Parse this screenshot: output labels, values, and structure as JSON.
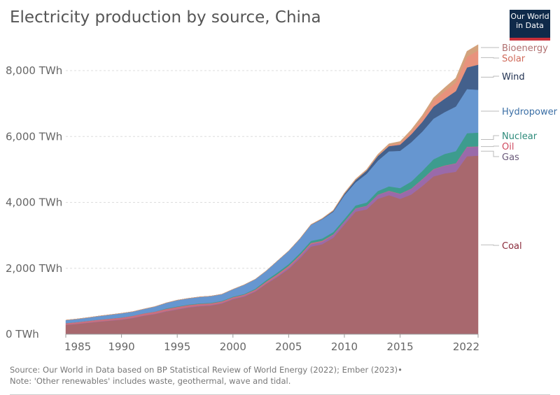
{
  "title": "Electricity production by source, China",
  "logo": "Our World in Data",
  "source": "Source: Our World in Data based on BP Statistical Review of World Energy (2022); Ember (2023)•",
  "note": "Note: 'Other renewables' includes waste, geothermal, wave and tidal.",
  "chart_data": {
    "type": "area",
    "stacked": true,
    "title": "Electricity production by source, China",
    "ylim": [
      0,
      8800
    ],
    "xlim": [
      1985,
      2022
    ],
    "yticks": [
      {
        "v": 0,
        "label": "0 TWh"
      },
      {
        "v": 2000,
        "label": "2,000 TWh"
      },
      {
        "v": 4000,
        "label": "4,000 TWh"
      },
      {
        "v": 6000,
        "label": "6,000 TWh"
      },
      {
        "v": 8000,
        "label": "8,000 TWh"
      }
    ],
    "xticks": [
      {
        "v": 1985,
        "label": "1985"
      },
      {
        "v": 1990,
        "label": "1990"
      },
      {
        "v": 1995,
        "label": "1995"
      },
      {
        "v": 2000,
        "label": "2000"
      },
      {
        "v": 2005,
        "label": "2005"
      },
      {
        "v": 2010,
        "label": "2010"
      },
      {
        "v": 2015,
        "label": "2015"
      },
      {
        "v": 2022,
        "label": "2022"
      }
    ],
    "grid": "horizontal dashed",
    "legend": "right, end labels",
    "x": [
      1985,
      1986,
      1987,
      1988,
      1989,
      1990,
      1991,
      1992,
      1993,
      1994,
      1995,
      1996,
      1997,
      1998,
      1999,
      2000,
      2001,
      2002,
      2003,
      2004,
      2005,
      2006,
      2007,
      2008,
      2009,
      2010,
      2011,
      2012,
      2013,
      2014,
      2015,
      2016,
      2017,
      2018,
      2019,
      2020,
      2021,
      2022
    ],
    "series": [
      {
        "name": "Coal",
        "color": "#a8686e",
        "label_color": "#8a2a3a",
        "values": [
          280,
          310,
          345,
          380,
          410,
          440,
          490,
          560,
          610,
          690,
          750,
          810,
          850,
          870,
          930,
          1060,
          1140,
          1290,
          1530,
          1740,
          1980,
          2300,
          2660,
          2730,
          2930,
          3330,
          3720,
          3790,
          4110,
          4220,
          4110,
          4240,
          4500,
          4790,
          4880,
          4930,
          5400,
          5420
        ]
      },
      {
        "name": "Gas",
        "color": "#9a6aaa",
        "label_color": "#6a5a7a",
        "values": [
          6,
          6,
          6,
          7,
          7,
          8,
          8,
          9,
          9,
          10,
          10,
          11,
          12,
          13,
          15,
          17,
          18,
          19,
          20,
          30,
          40,
          50,
          70,
          75,
          80,
          77,
          90,
          100,
          115,
          125,
          145,
          170,
          200,
          215,
          233,
          250,
          280,
          270
        ]
      },
      {
        "name": "Oil",
        "color": "#c9707e",
        "label_color": "#d04a60",
        "values": [
          50,
          52,
          54,
          56,
          58,
          60,
          62,
          64,
          66,
          68,
          70,
          65,
          60,
          55,
          50,
          47,
          45,
          45,
          50,
          55,
          55,
          50,
          40,
          30,
          20,
          15,
          12,
          10,
          10,
          10,
          10,
          10,
          10,
          10,
          10,
          10,
          12,
          11
        ]
      },
      {
        "name": "Nuclear",
        "color": "#3d9c8e",
        "label_color": "#2c8a7a",
        "values": [
          0,
          0,
          0,
          0,
          0,
          0,
          0,
          0,
          2,
          14,
          13,
          14,
          14,
          14,
          15,
          17,
          18,
          25,
          43,
          50,
          53,
          55,
          62,
          68,
          70,
          74,
          86,
          97,
          111,
          132,
          171,
          213,
          248,
          295,
          348,
          366,
          408,
          418
        ]
      },
      {
        "name": "Hydropower",
        "color": "#6696d0",
        "label_color": "#3a6ea5",
        "values": [
          92,
          94,
          100,
          109,
          118,
          127,
          124,
          131,
          151,
          167,
          190,
          188,
          196,
          204,
          204,
          222,
          277,
          288,
          283,
          353,
          397,
          435,
          485,
          585,
          616,
          722,
          699,
          872,
          920,
          1064,
          1130,
          1193,
          1194,
          1232,
          1270,
          1355,
          1340,
          1300
        ]
      },
      {
        "name": "Wind",
        "color": "#43608c",
        "label_color": "#1e2f4f",
        "values": [
          0,
          0,
          0,
          0,
          0,
          0,
          0,
          0,
          0,
          0,
          0,
          0,
          0,
          0,
          0,
          0,
          0,
          0,
          0,
          0,
          2,
          4,
          6,
          13,
          28,
          45,
          70,
          96,
          141,
          156,
          186,
          241,
          295,
          366,
          406,
          467,
          656,
          762
        ]
      },
      {
        "name": "Solar",
        "color": "#e8927c",
        "label_color": "#d06a5a",
        "values": [
          0,
          0,
          0,
          0,
          0,
          0,
          0,
          0,
          0,
          0,
          0,
          0,
          0,
          0,
          0,
          0,
          0,
          0,
          0,
          0,
          0,
          0,
          0,
          0,
          0,
          1,
          3,
          6,
          15,
          29,
          45,
          75,
          118,
          177,
          225,
          261,
          327,
          428
        ]
      },
      {
        "name": "Bioenergy",
        "color": "#d4a27c",
        "label_color": "#b07070",
        "values": [
          0,
          0,
          0,
          0,
          0,
          0,
          0,
          0,
          0,
          0,
          0,
          0,
          0,
          0,
          0,
          2,
          2,
          3,
          3,
          4,
          5,
          8,
          10,
          14,
          20,
          25,
          30,
          33,
          38,
          45,
          53,
          64,
          80,
          91,
          112,
          135,
          165,
          180
        ]
      }
    ]
  }
}
